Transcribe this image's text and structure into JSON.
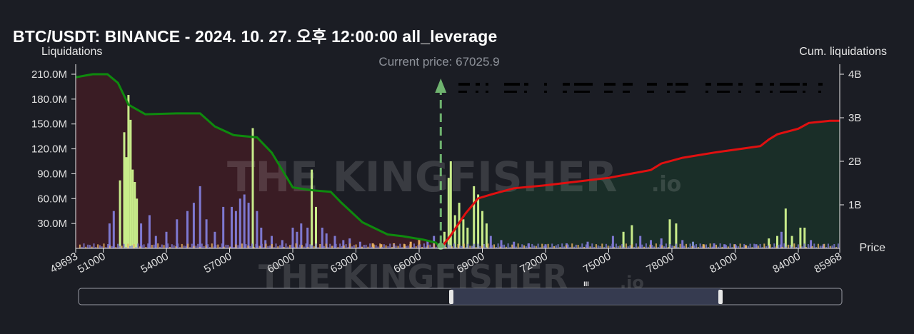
{
  "title": "BTC/USDT: BINANCE - 2024. 10. 27. 오후 12:00:00 all_leverage",
  "watermark": {
    "main": "THE KINGFISHER",
    "suffix": ".io"
  },
  "colors": {
    "background": "#1b1d24",
    "long_fill": "#3a1c24",
    "short_fill": "#1a2e28",
    "long_cum_line": "#0e8a0e",
    "short_cum_line": "#e01010",
    "bar_green": "#c8ec8a",
    "bar_purple": "#7e78d0",
    "bar_orange": "#e8b060",
    "bar_blue": "#7b8fc8",
    "price_arrow": "#6fb36f"
  },
  "navigator": {
    "handle_label": "III"
  },
  "chart_data": {
    "type": "bar",
    "xlabel": "Price",
    "ylabel": "Liquidations",
    "y2label": "Cum. liquidations",
    "xlim": [
      49693,
      85968
    ],
    "ylim": [
      0,
      210000000
    ],
    "y2lim": [
      0,
      4000000000
    ],
    "x_tick_values": [
      49693,
      51000,
      54000,
      57000,
      60000,
      63000,
      66000,
      69000,
      72000,
      75000,
      78000,
      81000,
      84000,
      85968
    ],
    "x_tick_labels": [
      "49693",
      "51000",
      "54000",
      "57000",
      "60000",
      "63000",
      "66000",
      "69000",
      "72000",
      "75000",
      "78000",
      "81000",
      "84000",
      "85968"
    ],
    "y_tick_values": [
      30000000,
      60000000,
      90000000,
      120000000,
      150000000,
      180000000,
      210000000
    ],
    "y_tick_labels": [
      "30.0M",
      "60.0M",
      "90.0M",
      "120.0M",
      "150.0M",
      "180.0M",
      "210.0M"
    ],
    "y2_tick_values": [
      1000000000,
      2000000000,
      3000000000,
      4000000000
    ],
    "y2_tick_labels": [
      "1B",
      "2B",
      "3B",
      "4B"
    ],
    "current_price": 67025.9,
    "current_price_label": "Current price: 67025.9",
    "grid": false,
    "cumulative_series": [
      {
        "name": "long",
        "color": "#0e8a0e",
        "points": [
          [
            49693,
            3930000000.0
          ],
          [
            50500,
            4000000000.0
          ],
          [
            51200,
            4000000000.0
          ],
          [
            51700,
            3800000000.0
          ],
          [
            52200,
            3300000000.0
          ],
          [
            53000,
            3080000000.0
          ],
          [
            54500,
            3100000000.0
          ],
          [
            55600,
            3100000000.0
          ],
          [
            56300,
            2800000000.0
          ],
          [
            57200,
            2600000000.0
          ],
          [
            58300,
            2550000000.0
          ],
          [
            59000,
            2200000000.0
          ],
          [
            60000,
            1400000000.0
          ],
          [
            61000,
            1330000000.0
          ],
          [
            61800,
            1300000000.0
          ],
          [
            62300,
            1050000000.0
          ],
          [
            63300,
            600000000.0
          ],
          [
            64500,
            320000000.0
          ],
          [
            65200,
            280000000.0
          ],
          [
            66200,
            200000000.0
          ],
          [
            66800,
            130000000.0
          ],
          [
            67025,
            0.0
          ]
        ]
      },
      {
        "name": "short",
        "color": "#e01010",
        "points": [
          [
            67025,
            0.0
          ],
          [
            67500,
            300000000.0
          ],
          [
            68200,
            800000000.0
          ],
          [
            68800,
            1150000000.0
          ],
          [
            69500,
            1250000000.0
          ],
          [
            70500,
            1380000000.0
          ],
          [
            72000,
            1450000000.0
          ],
          [
            75000,
            1620000000.0
          ],
          [
            77000,
            1800000000.0
          ],
          [
            77500,
            1950000000.0
          ],
          [
            78500,
            2080000000.0
          ],
          [
            80000,
            2200000000.0
          ],
          [
            82200,
            2350000000.0
          ],
          [
            82600,
            2500000000.0
          ],
          [
            83000,
            2620000000.0
          ],
          [
            84000,
            2750000000.0
          ],
          [
            84500,
            2880000000.0
          ],
          [
            85500,
            2930000000.0
          ],
          [
            85968,
            2930000000.0
          ]
        ]
      }
    ],
    "bars": [
      [
        51300,
        30000000,
        "purple"
      ],
      [
        51500,
        45000000,
        "purple"
      ],
      [
        51800,
        82000000,
        "green"
      ],
      [
        52000,
        140000000,
        "green"
      ],
      [
        52100,
        110000000,
        "green"
      ],
      [
        52200,
        185000000,
        "green"
      ],
      [
        52300,
        155000000,
        "green"
      ],
      [
        52400,
        95000000,
        "green"
      ],
      [
        52500,
        80000000,
        "green"
      ],
      [
        52600,
        60000000,
        "green"
      ],
      [
        52800,
        30000000,
        "purple"
      ],
      [
        53200,
        40000000,
        "purple"
      ],
      [
        53500,
        15000000,
        "purple"
      ],
      [
        54000,
        20000000,
        "purple"
      ],
      [
        54500,
        35000000,
        "purple"
      ],
      [
        55000,
        45000000,
        "purple"
      ],
      [
        55300,
        55000000,
        "purple"
      ],
      [
        55600,
        75000000,
        "purple"
      ],
      [
        55900,
        35000000,
        "purple"
      ],
      [
        56300,
        20000000,
        "purple"
      ],
      [
        56700,
        50000000,
        "purple"
      ],
      [
        57100,
        50000000,
        "purple"
      ],
      [
        57300,
        45000000,
        "purple"
      ],
      [
        57500,
        60000000,
        "purple"
      ],
      [
        57700,
        65000000,
        "purple"
      ],
      [
        57900,
        55000000,
        "purple"
      ],
      [
        58100,
        145000000,
        "green"
      ],
      [
        58300,
        45000000,
        "purple"
      ],
      [
        58500,
        25000000,
        "purple"
      ],
      [
        58700,
        10000000,
        "purple"
      ],
      [
        59000,
        15000000,
        "purple"
      ],
      [
        59500,
        10000000,
        "purple"
      ],
      [
        60000,
        25000000,
        "purple"
      ],
      [
        60200,
        20000000,
        "purple"
      ],
      [
        60400,
        30000000,
        "purple"
      ],
      [
        60700,
        25000000,
        "purple"
      ],
      [
        60900,
        95000000,
        "green"
      ],
      [
        61100,
        50000000,
        "green"
      ],
      [
        61400,
        25000000,
        "purple"
      ],
      [
        61600,
        18000000,
        "purple"
      ],
      [
        62000,
        15000000,
        "purple"
      ],
      [
        62400,
        10000000,
        "purple"
      ],
      [
        62700,
        12000000,
        "purple"
      ],
      [
        63200,
        8000000,
        "purple"
      ],
      [
        63800,
        6000000,
        "orange"
      ],
      [
        64200,
        5000000,
        "orange"
      ],
      [
        64800,
        6000000,
        "orange"
      ],
      [
        65300,
        5000000,
        "orange"
      ],
      [
        65600,
        8000000,
        "orange"
      ],
      [
        66000,
        12000000,
        "orange"
      ],
      [
        66400,
        10000000,
        "purple"
      ],
      [
        66700,
        15000000,
        "purple"
      ],
      [
        67200,
        20000000,
        "green"
      ],
      [
        67400,
        85000000,
        "green"
      ],
      [
        67500,
        105000000,
        "green"
      ],
      [
        67700,
        40000000,
        "green"
      ],
      [
        67900,
        55000000,
        "green"
      ],
      [
        68100,
        35000000,
        "green"
      ],
      [
        68300,
        25000000,
        "green"
      ],
      [
        68600,
        75000000,
        "green"
      ],
      [
        68800,
        65000000,
        "green"
      ],
      [
        69000,
        45000000,
        "green"
      ],
      [
        69200,
        30000000,
        "green"
      ],
      [
        69400,
        15000000,
        "purple"
      ],
      [
        69900,
        10000000,
        "purple"
      ],
      [
        70500,
        8000000,
        "purple"
      ],
      [
        71200,
        6000000,
        "purple"
      ],
      [
        72000,
        5000000,
        "purple"
      ],
      [
        73000,
        6000000,
        "purple"
      ],
      [
        74000,
        8000000,
        "purple"
      ],
      [
        75200,
        15000000,
        "purple"
      ],
      [
        75700,
        20000000,
        "green"
      ],
      [
        76100,
        28000000,
        "green"
      ],
      [
        76500,
        15000000,
        "purple"
      ],
      [
        77000,
        10000000,
        "purple"
      ],
      [
        77500,
        12000000,
        "purple"
      ],
      [
        77900,
        35000000,
        "green"
      ],
      [
        78200,
        30000000,
        "green"
      ],
      [
        78500,
        10000000,
        "purple"
      ],
      [
        79000,
        8000000,
        "blue"
      ],
      [
        79500,
        5000000,
        "orange"
      ],
      [
        80000,
        6000000,
        "purple"
      ],
      [
        80500,
        5000000,
        "purple"
      ],
      [
        81000,
        5000000,
        "purple"
      ],
      [
        81500,
        4000000,
        "orange"
      ],
      [
        82000,
        5000000,
        "purple"
      ],
      [
        82600,
        12000000,
        "green"
      ],
      [
        83000,
        15000000,
        "green"
      ],
      [
        83200,
        20000000,
        "purple"
      ],
      [
        83400,
        48000000,
        "green"
      ],
      [
        83700,
        15000000,
        "green"
      ],
      [
        84100,
        25000000,
        "green"
      ],
      [
        84300,
        25000000,
        "green"
      ],
      [
        84600,
        10000000,
        "purple"
      ],
      [
        85200,
        5000000,
        "purple"
      ]
    ]
  }
}
